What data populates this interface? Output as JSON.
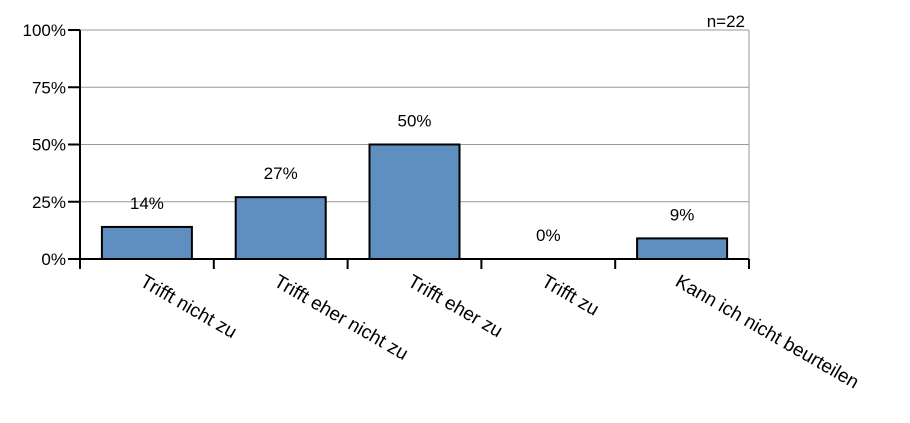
{
  "chart_data": {
    "type": "bar",
    "categories": [
      "Trifft nicht zu",
      "Trifft eher nicht zu",
      "Trifft eher zu",
      "Trifft zu",
      "Kann ich nicht beurteilen"
    ],
    "values": [
      14,
      27,
      50,
      0,
      9
    ],
    "value_labels": [
      "14%",
      "27%",
      "50%",
      "0%",
      "9%"
    ],
    "y_ticks": [
      "0%",
      "25%",
      "50%",
      "75%",
      "100%"
    ],
    "ylim": [
      0,
      100
    ],
    "sample_size": "n=22",
    "grid": true,
    "colors": {
      "bar": "#5f8ec0",
      "bar_border": "#000000",
      "grid": "#999999",
      "axis": "#000000"
    }
  }
}
